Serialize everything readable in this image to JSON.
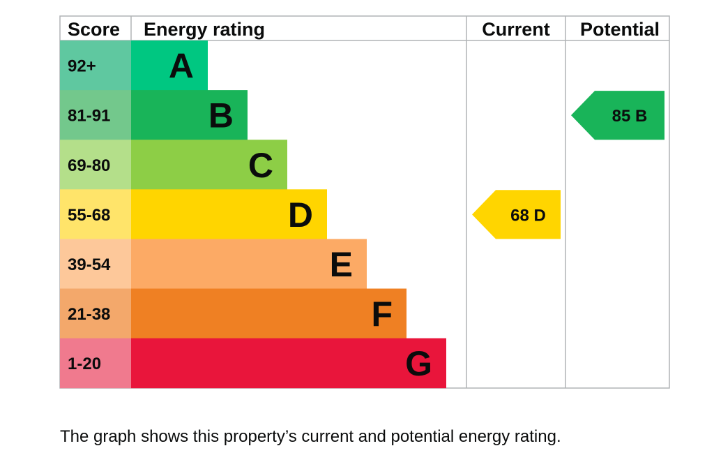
{
  "chart_data": {
    "type": "bar",
    "headers": {
      "score": "Score",
      "rating": "Energy rating",
      "current": "Current",
      "potential": "Potential"
    },
    "bands": [
      {
        "score": "92+",
        "letter": "A",
        "color": "#00c781",
        "score_color": "#5fc8a0"
      },
      {
        "score": "81-91",
        "letter": "B",
        "color": "#19b459",
        "score_color": "#73c88c"
      },
      {
        "score": "69-80",
        "letter": "C",
        "color": "#8dce46",
        "score_color": "#b4df8a"
      },
      {
        "score": "55-68",
        "letter": "D",
        "color": "#ffd500",
        "score_color": "#ffe46a"
      },
      {
        "score": "39-54",
        "letter": "E",
        "color": "#fcaa65",
        "score_color": "#fdc89a"
      },
      {
        "score": "21-38",
        "letter": "F",
        "color": "#ef8023",
        "score_color": "#f3a86b"
      },
      {
        "score": "1-20",
        "letter": "G",
        "color": "#e9153b",
        "score_color": "#f07a8e"
      }
    ],
    "current": {
      "value": 68,
      "letter": "D",
      "label": "68  D"
    },
    "potential": {
      "value": 85,
      "letter": "B",
      "label": "85  B"
    }
  },
  "caption": "The graph shows this property’s current and potential energy rating."
}
